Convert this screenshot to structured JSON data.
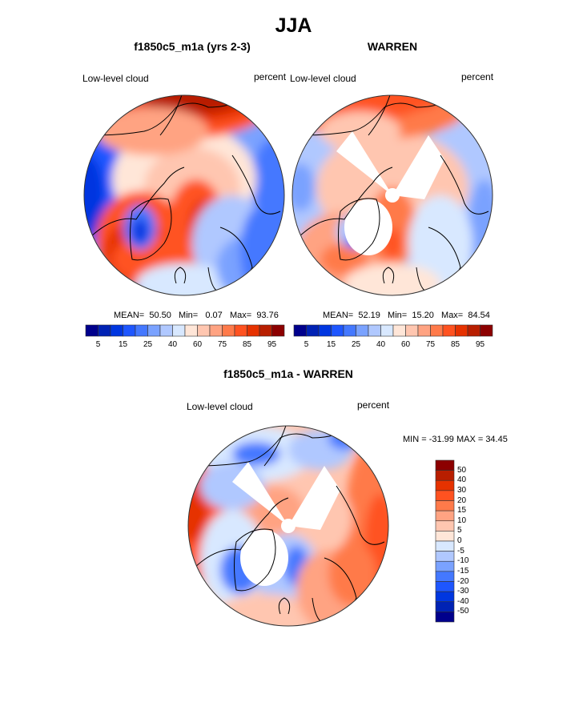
{
  "figure": {
    "title": "JJA",
    "units_note": "percent"
  },
  "chart_data": [
    {
      "type": "heatmap",
      "projection": "north-polar-stereographic",
      "title": "f1850c5_m1a (yrs 2-3)",
      "left_label": "Low-level cloud",
      "right_label": "percent",
      "stats": {
        "mean_label": "MEAN=",
        "mean": "50.50",
        "min_label": "Min=",
        "min": "0.07",
        "max_label": "Max=",
        "max": "93.76"
      },
      "colorbar": {
        "orientation": "horizontal",
        "tick_labels": [
          "5",
          "15",
          "25",
          "40",
          "60",
          "75",
          "85",
          "95"
        ],
        "colors": [
          "#00008c",
          "#0022b4",
          "#0036e0",
          "#1e56ff",
          "#4478ff",
          "#7aa2ff",
          "#b0c8ff",
          "#d8e8ff",
          "#ffe6d8",
          "#ffc6b0",
          "#ffa382",
          "#ff7a4a",
          "#ff5220",
          "#e63200",
          "#b81e00",
          "#8c0000"
        ]
      },
      "pattern": {
        "north_pacific": "high (85-95)",
        "greenland_sea_barents": "high (75-85)",
        "greenland_interior": "low (5-25)",
        "arctic_ocean": "moderate (60-75)",
        "siberia_continents": "low (15-40)"
      }
    },
    {
      "type": "heatmap",
      "projection": "north-polar-stereographic",
      "title": "WARREN",
      "left_label": "Low-level cloud",
      "right_label": "percent",
      "stats": {
        "mean_label": "MEAN=",
        "mean": "52.19",
        "min_label": "Min=",
        "min": "15.20",
        "max_label": "Max=",
        "max": "84.54"
      },
      "colorbar": {
        "orientation": "horizontal",
        "tick_labels": [
          "5",
          "15",
          "25",
          "40",
          "60",
          "75",
          "85",
          "95"
        ],
        "colors": [
          "#00008c",
          "#0022b4",
          "#0036e0",
          "#1e56ff",
          "#4478ff",
          "#7aa2ff",
          "#b0c8ff",
          "#d8e8ff",
          "#ffe6d8",
          "#ffc6b0",
          "#ffa382",
          "#ff7a4a",
          "#ff5220",
          "#e63200",
          "#b81e00",
          "#8c0000"
        ]
      },
      "pattern": {
        "north_pacific": "high (75-85)",
        "arctic_ocean": "moderate (60-75)",
        "missing_sectors": "white (no data)",
        "continents": "low (25-40)"
      }
    },
    {
      "type": "heatmap",
      "projection": "north-polar-stereographic",
      "title": "f1850c5_m1a - WARREN",
      "left_label": "Low-level cloud",
      "right_label": "percent",
      "stats": {
        "text": "MIN = -31.99 MAX =  34.45",
        "min": "-31.99",
        "max": "34.45"
      },
      "colorbar": {
        "orientation": "vertical",
        "tick_labels": [
          "50",
          "40",
          "30",
          "20",
          "15",
          "10",
          "5",
          "0",
          "-5",
          "-10",
          "-15",
          "-20",
          "-30",
          "-40",
          "-50"
        ],
        "colors_top_to_bottom": [
          "#8c0000",
          "#b81e00",
          "#e63200",
          "#ff5220",
          "#ff7a4a",
          "#ffa382",
          "#ffc6b0",
          "#ffe6d8",
          "#d8e8ff",
          "#b0c8ff",
          "#7aa2ff",
          "#4478ff",
          "#1e56ff",
          "#0036e0",
          "#0022b4",
          "#00008c"
        ]
      },
      "pattern": {
        "greenland_sea": "positive (5-20)",
        "alaska_bering": "positive (10-20)",
        "arctic_ocean": "slightly negative (-5 to 0)",
        "continents_margins": "negative (-15 to -30)",
        "missing_sectors": "white (no data)"
      }
    }
  ]
}
